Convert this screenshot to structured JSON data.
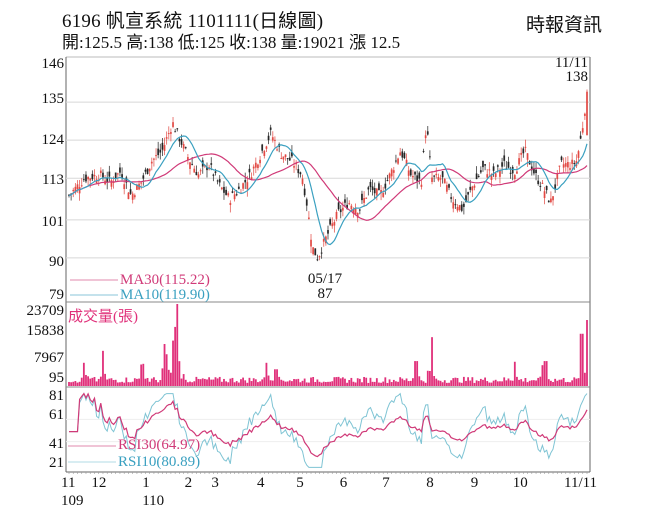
{
  "header": {
    "title": "6196  帆宣系統 1101111(日線圖)",
    "stats": "開:125.5 高:138 低:125 收:138 量:19021 漲 12.5",
    "source": "時報資訊"
  },
  "annotations": {
    "last_date": "11/11",
    "last_price": "138",
    "low_date": "05/17",
    "low_price": "87"
  },
  "legend": {
    "ma30": "MA30(115.22)",
    "ma10": "MA10(119.90)",
    "volume": "成交量(張)",
    "rsi30": "RSI30(64.97)",
    "rsi10": "RSI10(80.89)"
  },
  "colors": {
    "up": "#e0403a",
    "down": "#1a1a1a",
    "ma30": "#d03a78",
    "ma10": "#3aa0c0",
    "volume": "#e0307a",
    "rsi30": "#d03a78",
    "rsi10": "#7fc4d4",
    "grid": "#d8d8d8"
  },
  "chart_data": {
    "type": "candlestick",
    "title": "6196 帆宣系統 1101111(日線圖)",
    "panes": [
      {
        "name": "price",
        "yticks": [
          146,
          135,
          124,
          113,
          101,
          90,
          79
        ],
        "ylim": [
          79,
          146
        ],
        "series": [
          {
            "name": "MA30",
            "last": 115.22
          },
          {
            "name": "MA10",
            "last": 119.9
          }
        ]
      },
      {
        "name": "volume",
        "label": "成交量(張)",
        "yticks": [
          23709,
          15838,
          7967,
          95
        ],
        "ylim": [
          0,
          23709
        ]
      },
      {
        "name": "rsi",
        "yticks": [
          81,
          61,
          41,
          21
        ],
        "ylim": [
          15,
          85
        ],
        "series": [
          {
            "name": "RSI30",
            "last": 64.97
          },
          {
            "name": "RSI10",
            "last": 80.89
          }
        ]
      }
    ],
    "x_ticks": [
      {
        "label": "11",
        "sub": "109",
        "pos": 0.0
      },
      {
        "label": "12",
        "pos": 0.058
      },
      {
        "label": "1",
        "sub": "110",
        "pos": 0.155
      },
      {
        "label": "2",
        "pos": 0.236
      },
      {
        "label": "3",
        "pos": 0.287
      },
      {
        "label": "4",
        "pos": 0.374
      },
      {
        "label": "5",
        "pos": 0.449
      },
      {
        "label": "6",
        "pos": 0.532
      },
      {
        "label": "7",
        "pos": 0.613
      },
      {
        "label": "8",
        "pos": 0.697
      },
      {
        "label": "9",
        "pos": 0.782
      },
      {
        "label": "10",
        "pos": 0.862
      },
      {
        "label": "11/11",
        "pos": 1.0
      }
    ],
    "close_keypoints": [
      [
        0,
        108
      ],
      [
        0.03,
        113
      ],
      [
        0.06,
        114
      ],
      [
        0.08,
        112
      ],
      [
        0.1,
        115
      ],
      [
        0.12,
        108
      ],
      [
        0.14,
        112
      ],
      [
        0.16,
        118
      ],
      [
        0.18,
        121
      ],
      [
        0.2,
        129
      ],
      [
        0.215,
        124
      ],
      [
        0.23,
        119
      ],
      [
        0.25,
        114
      ],
      [
        0.27,
        117
      ],
      [
        0.29,
        111
      ],
      [
        0.31,
        107
      ],
      [
        0.33,
        110
      ],
      [
        0.35,
        114
      ],
      [
        0.37,
        120
      ],
      [
        0.39,
        126
      ],
      [
        0.41,
        120
      ],
      [
        0.43,
        118
      ],
      [
        0.45,
        114
      ],
      [
        0.46,
        105
      ],
      [
        0.47,
        93
      ],
      [
        0.48,
        90
      ],
      [
        0.5,
        97
      ],
      [
        0.52,
        103
      ],
      [
        0.54,
        106
      ],
      [
        0.56,
        104
      ],
      [
        0.58,
        110
      ],
      [
        0.6,
        108
      ],
      [
        0.62,
        114
      ],
      [
        0.64,
        121
      ],
      [
        0.66,
        114
      ],
      [
        0.68,
        112
      ],
      [
        0.69,
        129
      ],
      [
        0.7,
        113
      ],
      [
        0.72,
        113
      ],
      [
        0.74,
        107
      ],
      [
        0.76,
        104
      ],
      [
        0.78,
        111
      ],
      [
        0.8,
        116
      ],
      [
        0.82,
        114
      ],
      [
        0.84,
        117
      ],
      [
        0.86,
        115
      ],
      [
        0.88,
        121
      ],
      [
        0.9,
        114
      ],
      [
        0.92,
        109
      ],
      [
        0.93,
        106
      ],
      [
        0.95,
        117
      ],
      [
        0.97,
        117
      ],
      [
        0.98,
        118
      ],
      [
        0.99,
        126
      ],
      [
        1.0,
        138
      ]
    ],
    "volume_spikes": [
      [
        0.03,
        6500
      ],
      [
        0.065,
        10000
      ],
      [
        0.14,
        6000
      ],
      [
        0.145,
        6200
      ],
      [
        0.185,
        12000
      ],
      [
        0.19,
        9000
      ],
      [
        0.2,
        13000
      ],
      [
        0.205,
        17000
      ],
      [
        0.21,
        23709
      ],
      [
        0.22,
        3200
      ],
      [
        0.38,
        6500
      ],
      [
        0.4,
        4600
      ],
      [
        0.67,
        7000
      ],
      [
        0.7,
        14000
      ],
      [
        0.86,
        6800
      ],
      [
        0.915,
        5800
      ],
      [
        0.92,
        7000
      ],
      [
        0.99,
        15000
      ],
      [
        1.0,
        19021
      ]
    ]
  }
}
